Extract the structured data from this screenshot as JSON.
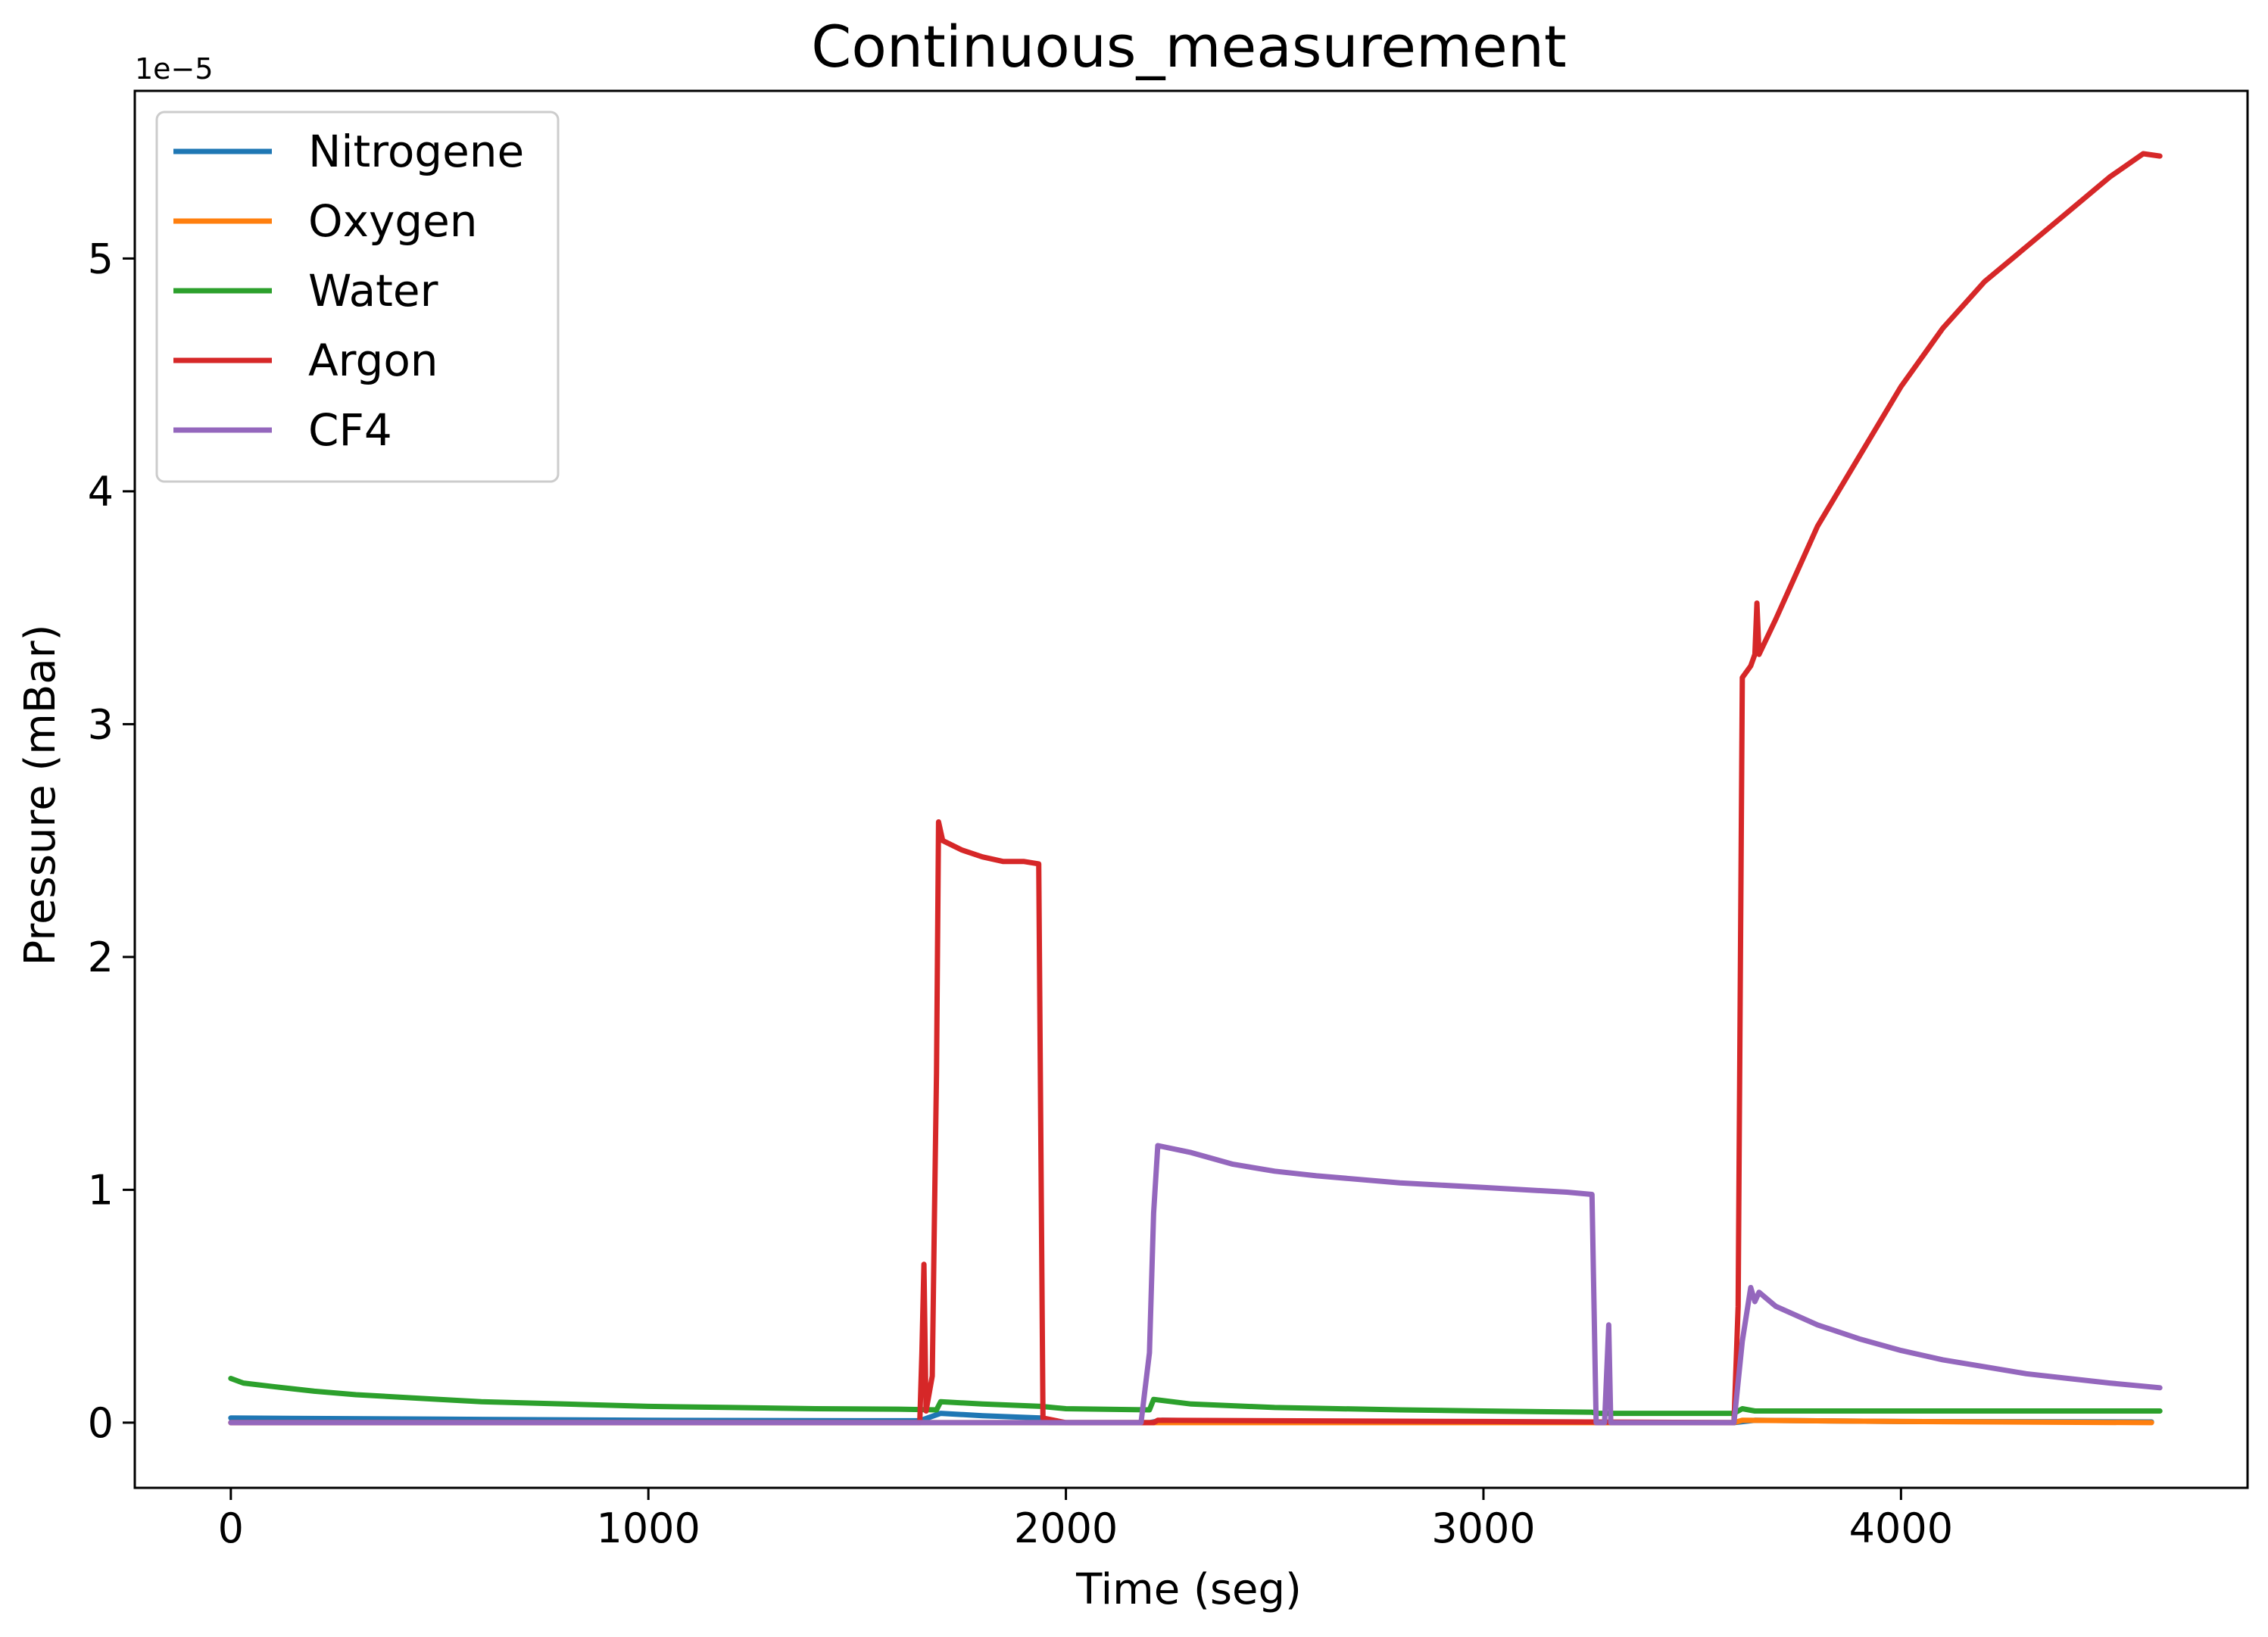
{
  "chart_data": {
    "type": "line",
    "title": "Continuous_measurement",
    "xlabel": "Time (seg)",
    "ylabel": "Pressure (mBar)",
    "y_offset_label": "1e−5",
    "xlim": [
      -230,
      4830
    ],
    "ylim": [
      -0.28,
      5.72
    ],
    "y_scale_factor": 1e-05,
    "xticks": [
      0,
      1000,
      2000,
      3000,
      4000
    ],
    "xtick_labels": [
      "0",
      "1000",
      "2000",
      "3000",
      "4000"
    ],
    "yticks": [
      0,
      1,
      2,
      3,
      4,
      5
    ],
    "ytick_labels": [
      "0",
      "1",
      "2",
      "3",
      "4",
      "5"
    ],
    "grid": false,
    "legend_position": "top-left",
    "series": [
      {
        "name": "Nitrogene",
        "color": "#1f77b4",
        "points": [
          [
            0,
            0.02
          ],
          [
            500,
            0.015
          ],
          [
            1000,
            0.01
          ],
          [
            1500,
            0.008
          ],
          [
            1650,
            0.008
          ],
          [
            1700,
            0.04
          ],
          [
            1800,
            0.03
          ],
          [
            1940,
            0.02
          ],
          [
            1960,
            0.0
          ],
          [
            2200,
            0.0
          ],
          [
            2230,
            0.01
          ],
          [
            2500,
            0.005
          ],
          [
            3250,
            0.003
          ],
          [
            3270,
            0.0
          ],
          [
            3600,
            0.0
          ],
          [
            3650,
            0.01
          ],
          [
            4000,
            0.005
          ],
          [
            4600,
            0.003
          ]
        ]
      },
      {
        "name": "Oxygen",
        "color": "#ff7f0e",
        "points": [
          [
            0,
            0.0
          ],
          [
            1000,
            0.0
          ],
          [
            2000,
            0.0
          ],
          [
            3000,
            0.0
          ],
          [
            3600,
            0.0
          ],
          [
            3620,
            0.01
          ],
          [
            4000,
            0.005
          ],
          [
            4600,
            0.0
          ]
        ]
      },
      {
        "name": "Water",
        "color": "#2ca02c",
        "points": [
          [
            0,
            0.19
          ],
          [
            30,
            0.17
          ],
          [
            100,
            0.155
          ],
          [
            200,
            0.135
          ],
          [
            300,
            0.12
          ],
          [
            400,
            0.11
          ],
          [
            500,
            0.1
          ],
          [
            600,
            0.09
          ],
          [
            700,
            0.085
          ],
          [
            800,
            0.08
          ],
          [
            1000,
            0.07
          ],
          [
            1200,
            0.065
          ],
          [
            1400,
            0.06
          ],
          [
            1600,
            0.058
          ],
          [
            1690,
            0.055
          ],
          [
            1700,
            0.09
          ],
          [
            1800,
            0.08
          ],
          [
            1940,
            0.07
          ],
          [
            2000,
            0.06
          ],
          [
            2200,
            0.055
          ],
          [
            2210,
            0.1
          ],
          [
            2300,
            0.08
          ],
          [
            2500,
            0.065
          ],
          [
            2800,
            0.055
          ],
          [
            3000,
            0.05
          ],
          [
            3260,
            0.045
          ],
          [
            3270,
            0.04
          ],
          [
            3600,
            0.04
          ],
          [
            3620,
            0.06
          ],
          [
            3650,
            0.05
          ],
          [
            4000,
            0.05
          ],
          [
            4620,
            0.05
          ]
        ]
      },
      {
        "name": "Argon",
        "color": "#d62728",
        "points": [
          [
            0,
            0.0
          ],
          [
            1650,
            0.0
          ],
          [
            1655,
            0.3
          ],
          [
            1660,
            0.68
          ],
          [
            1665,
            0.05
          ],
          [
            1680,
            0.2
          ],
          [
            1685,
            0.87
          ],
          [
            1690,
            1.5
          ],
          [
            1695,
            2.58
          ],
          [
            1705,
            2.5
          ],
          [
            1750,
            2.46
          ],
          [
            1800,
            2.43
          ],
          [
            1850,
            2.41
          ],
          [
            1900,
            2.41
          ],
          [
            1935,
            2.4
          ],
          [
            1945,
            0.02
          ],
          [
            2000,
            0.0
          ],
          [
            2210,
            0.0
          ],
          [
            2220,
            0.01
          ],
          [
            3000,
            0.005
          ],
          [
            3600,
            0.0
          ],
          [
            3610,
            0.5
          ],
          [
            3620,
            3.2
          ],
          [
            3640,
            3.25
          ],
          [
            3650,
            3.3
          ],
          [
            3655,
            3.52
          ],
          [
            3660,
            3.3
          ],
          [
            3700,
            3.45
          ],
          [
            3800,
            3.85
          ],
          [
            3900,
            4.15
          ],
          [
            4000,
            4.45
          ],
          [
            4100,
            4.7
          ],
          [
            4200,
            4.9
          ],
          [
            4300,
            5.05
          ],
          [
            4400,
            5.2
          ],
          [
            4500,
            5.35
          ],
          [
            4580,
            5.45
          ],
          [
            4620,
            5.44
          ]
        ]
      },
      {
        "name": "CF4",
        "color": "#9467bd",
        "points": [
          [
            0,
            0.0
          ],
          [
            1000,
            0.0
          ],
          [
            2180,
            0.0
          ],
          [
            2190,
            0.15
          ],
          [
            2200,
            0.3
          ],
          [
            2210,
            0.9
          ],
          [
            2220,
            1.19
          ],
          [
            2300,
            1.16
          ],
          [
            2400,
            1.11
          ],
          [
            2500,
            1.08
          ],
          [
            2600,
            1.06
          ],
          [
            2800,
            1.03
          ],
          [
            3000,
            1.01
          ],
          [
            3200,
            0.99
          ],
          [
            3260,
            0.98
          ],
          [
            3270,
            0.0
          ],
          [
            3290,
            0.0
          ],
          [
            3300,
            0.42
          ],
          [
            3305,
            0.0
          ],
          [
            3600,
            0.0
          ],
          [
            3620,
            0.35
          ],
          [
            3640,
            0.58
          ],
          [
            3650,
            0.52
          ],
          [
            3660,
            0.56
          ],
          [
            3700,
            0.5
          ],
          [
            3800,
            0.42
          ],
          [
            3900,
            0.36
          ],
          [
            4000,
            0.31
          ],
          [
            4100,
            0.27
          ],
          [
            4200,
            0.24
          ],
          [
            4300,
            0.21
          ],
          [
            4400,
            0.19
          ],
          [
            4500,
            0.17
          ],
          [
            4620,
            0.15
          ]
        ]
      }
    ]
  }
}
